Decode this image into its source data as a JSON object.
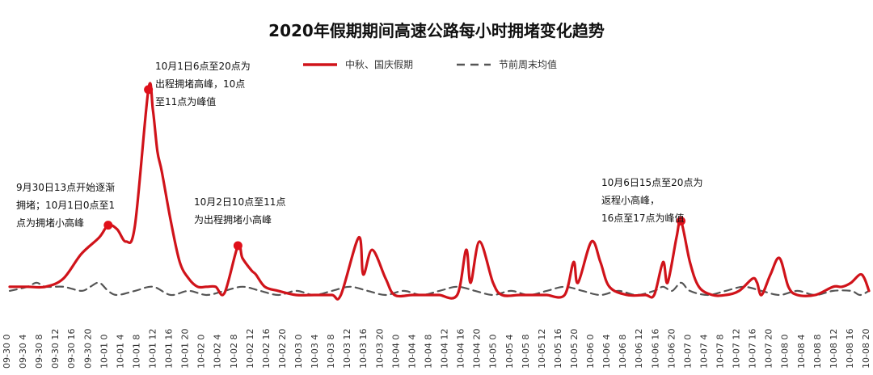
{
  "chart_data": {
    "type": "line",
    "title": "2020年假期期间高速公路每小时拥堵变化趋势",
    "xlabel": "",
    "ylabel": "",
    "legend_position": "top",
    "grid": false,
    "y_axis_visible": false,
    "ylim": [
      0,
      100
    ],
    "x_tick_labels": [
      "09-30 0",
      "09-30 4",
      "09-30 8",
      "09-30 12",
      "09-30 16",
      "09-30 20",
      "10-01 0",
      "10-01 4",
      "10-01 8",
      "10-01 12",
      "10-01 16",
      "10-01 20",
      "10-02 0",
      "10-02 4",
      "10-02 8",
      "10-02 12",
      "10-02 16",
      "10-02 20",
      "10-03 0",
      "10-03 4",
      "10-03 8",
      "10-03 12",
      "10-03 16",
      "10-03 20",
      "10-04 0",
      "10-04 4",
      "10-04 8",
      "10-04 12",
      "10-04 16",
      "10-04 20",
      "10-05 0",
      "10-05 4",
      "10-05 8",
      "10-05 12",
      "10-05 16",
      "10-05 20",
      "10-06 0",
      "10-06 4",
      "10-06 8",
      "10-06 12",
      "10-06 16",
      "10-06 20",
      "10-07 0",
      "10-07 4",
      "10-07 8",
      "10-07 12",
      "10-07 16",
      "10-07 20",
      "10-08 0",
      "10-08 4",
      "10-08 8",
      "10-08 12",
      "10-08 16",
      "10-08 20"
    ],
    "series": [
      {
        "name": "中秋、国庆假期",
        "color": "#d0131a",
        "style": "solid",
        "points": [
          [
            0,
            2
          ],
          [
            4,
            2
          ],
          [
            8,
            2
          ],
          [
            12,
            4
          ],
          [
            16,
            10
          ],
          [
            20,
            14
          ],
          [
            22,
            17
          ],
          [
            24,
            16
          ],
          [
            26,
            13
          ],
          [
            28,
            17
          ],
          [
            31,
            50
          ],
          [
            32,
            45
          ],
          [
            33,
            35
          ],
          [
            34,
            30
          ],
          [
            36,
            18
          ],
          [
            38,
            8
          ],
          [
            40,
            4
          ],
          [
            42,
            2
          ],
          [
            44,
            2
          ],
          [
            46,
            2
          ],
          [
            48,
            0.5
          ],
          [
            51,
            12
          ],
          [
            52,
            9
          ],
          [
            54,
            6
          ],
          [
            55,
            5
          ],
          [
            57,
            2
          ],
          [
            60,
            1
          ],
          [
            64,
            0
          ],
          [
            68,
            0
          ],
          [
            72,
            0
          ],
          [
            74,
            0
          ],
          [
            78,
            14
          ],
          [
            79,
            5
          ],
          [
            81,
            11
          ],
          [
            84,
            4
          ],
          [
            86,
            0
          ],
          [
            90,
            0
          ],
          [
            94,
            0
          ],
          [
            96,
            0
          ],
          [
            100,
            0
          ],
          [
            102,
            11
          ],
          [
            103,
            3
          ],
          [
            105,
            13
          ],
          [
            108,
            3
          ],
          [
            110,
            0
          ],
          [
            114,
            0
          ],
          [
            118,
            0
          ],
          [
            120,
            0
          ],
          [
            124,
            0
          ],
          [
            126,
            8
          ],
          [
            127,
            3
          ],
          [
            130,
            13
          ],
          [
            132,
            8
          ],
          [
            134,
            2
          ],
          [
            138,
            0
          ],
          [
            142,
            0
          ],
          [
            144,
            0
          ],
          [
            146,
            8
          ],
          [
            147,
            3
          ],
          [
            149,
            14
          ],
          [
            150,
            18
          ],
          [
            152,
            8
          ],
          [
            154,
            2
          ],
          [
            157,
            0
          ],
          [
            160,
            0
          ],
          [
            163,
            1
          ],
          [
            166,
            4
          ],
          [
            167,
            3
          ],
          [
            168,
            0
          ],
          [
            170,
            5
          ],
          [
            172,
            9
          ],
          [
            174,
            2
          ],
          [
            176,
            0
          ],
          [
            180,
            0
          ],
          [
            184,
            2
          ],
          [
            186,
            2
          ],
          [
            188,
            3
          ],
          [
            190,
            5
          ],
          [
            191,
            4
          ],
          [
            192,
            1
          ]
        ]
      },
      {
        "name": "节前周末均值",
        "color": "#555555",
        "style": "dashed",
        "points": [
          [
            0,
            1
          ],
          [
            4,
            2
          ],
          [
            6,
            3
          ],
          [
            8,
            2
          ],
          [
            12,
            2
          ],
          [
            16,
            1
          ],
          [
            18,
            2
          ],
          [
            20,
            3
          ],
          [
            22,
            1
          ],
          [
            24,
            0
          ],
          [
            28,
            1
          ],
          [
            32,
            2
          ],
          [
            36,
            0
          ],
          [
            40,
            1
          ],
          [
            44,
            0
          ],
          [
            48,
            1
          ],
          [
            52,
            2
          ],
          [
            56,
            1
          ],
          [
            60,
            0
          ],
          [
            64,
            1
          ],
          [
            68,
            0
          ],
          [
            72,
            1
          ],
          [
            76,
            2
          ],
          [
            80,
            1
          ],
          [
            84,
            0
          ],
          [
            88,
            1
          ],
          [
            92,
            0
          ],
          [
            96,
            1
          ],
          [
            100,
            2
          ],
          [
            104,
            1
          ],
          [
            108,
            0
          ],
          [
            112,
            1
          ],
          [
            116,
            0
          ],
          [
            120,
            1
          ],
          [
            124,
            2
          ],
          [
            128,
            1
          ],
          [
            132,
            0
          ],
          [
            136,
            1
          ],
          [
            140,
            0
          ],
          [
            144,
            1
          ],
          [
            146,
            2
          ],
          [
            148,
            1
          ],
          [
            150,
            3
          ],
          [
            152,
            1
          ],
          [
            156,
            0
          ],
          [
            160,
            1
          ],
          [
            164,
            2
          ],
          [
            168,
            1
          ],
          [
            172,
            0
          ],
          [
            176,
            1
          ],
          [
            180,
            0
          ],
          [
            184,
            1
          ],
          [
            188,
            1
          ],
          [
            190,
            0
          ],
          [
            192,
            1
          ]
        ]
      }
    ],
    "annotations": [
      {
        "x": 22,
        "y": 17,
        "lines": [
          "9月30日13点开始逐渐",
          "拥堵；10月1日0点至1",
          "点为拥堵小高峰"
        ]
      },
      {
        "x": 31,
        "y": 50,
        "lines": [
          "10月1日6点至20点为",
          "出程拥堵高峰，10点",
          "至11点为峰值"
        ]
      },
      {
        "x": 51,
        "y": 12,
        "lines": [
          "10月2日10点至11点",
          "为出程拥堵小高峰"
        ]
      },
      {
        "x": 150,
        "y": 18,
        "lines": [
          "10月6日15点至20点为",
          "返程小高峰，",
          "16点至17点为峰值"
        ]
      }
    ]
  }
}
